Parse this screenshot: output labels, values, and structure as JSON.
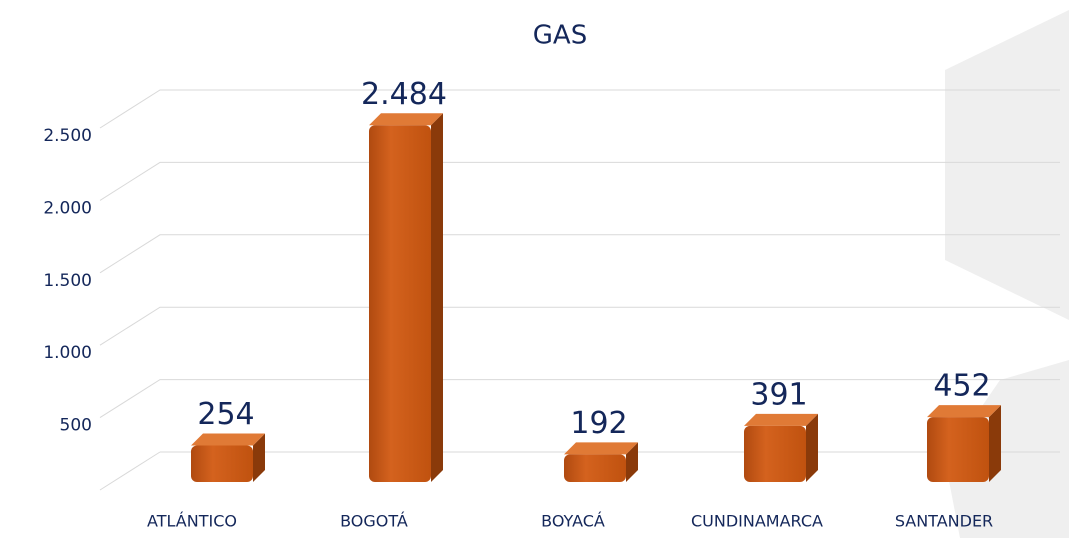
{
  "chart_data": {
    "type": "bar",
    "title": "GAS",
    "categories": [
      "ATLÁNTICO",
      "BOGOTÁ",
      "BOYACÁ",
      "CUNDINAMARCA",
      "SANTANDER"
    ],
    "values": [
      254,
      2484,
      192,
      391,
      452
    ],
    "value_labels": [
      "254",
      "2.484",
      "192",
      "391",
      "452"
    ],
    "color": "#c8581a",
    "ylim": [
      0,
      2500
    ],
    "yticks": [
      500,
      {
        "value": 1000,
        "label": "1.000"
      },
      {
        "value": 1500,
        "label": "1.500"
      },
      {
        "value": 2000,
        "label": "2.000"
      },
      {
        "value": 2500,
        "label": "2.500"
      }
    ],
    "grid": true
  }
}
